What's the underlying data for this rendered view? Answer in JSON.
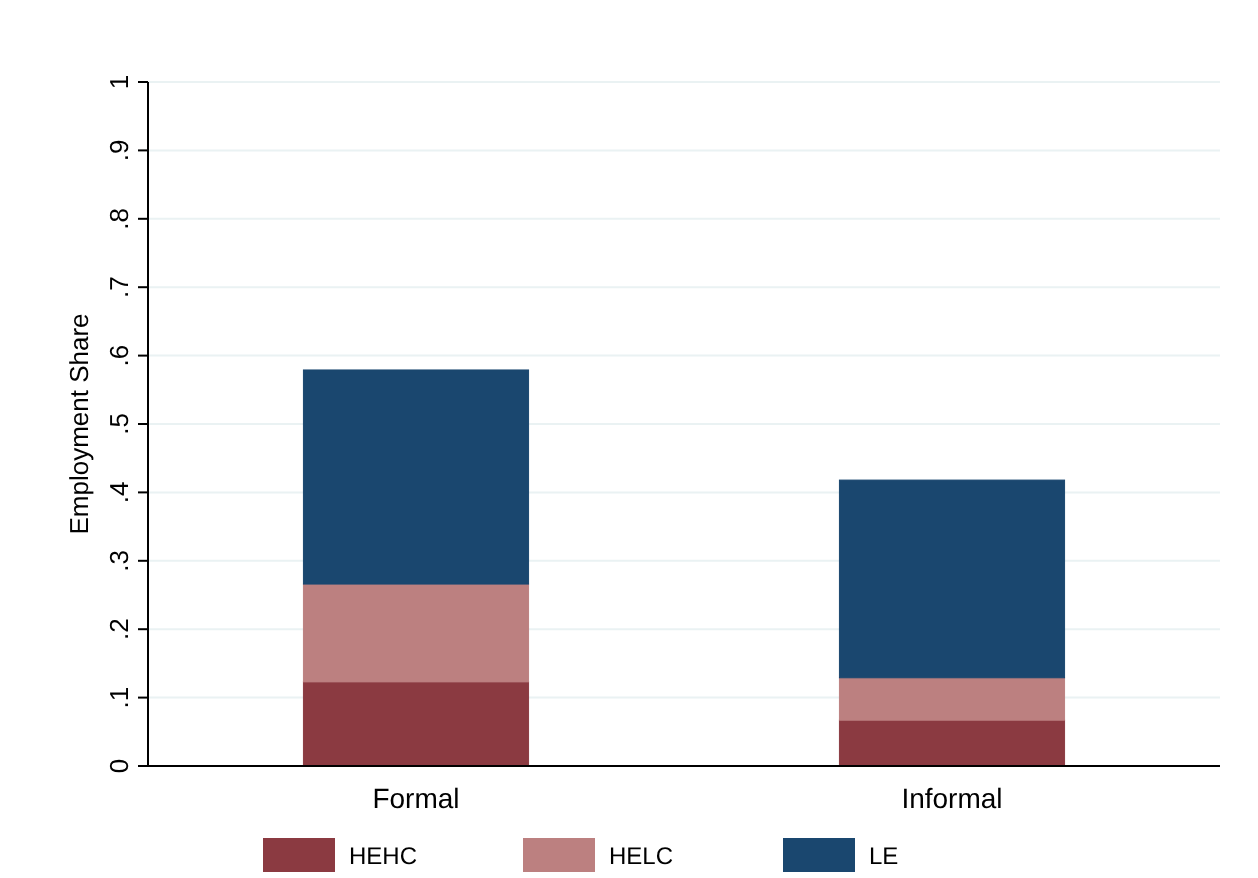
{
  "chart_data": {
    "type": "bar",
    "stacked": true,
    "ylabel": "Employment Share",
    "categories": [
      "Formal",
      "Informal"
    ],
    "series": [
      {
        "name": "HEHC",
        "color": "#8b3a41",
        "values": [
          0.123,
          0.067
        ]
      },
      {
        "name": "HELC",
        "color": "#bc8080",
        "values": [
          0.143,
          0.062
        ]
      },
      {
        "name": "LE",
        "color": "#1a476f",
        "values": [
          0.313,
          0.289
        ]
      }
    ],
    "ylim": [
      0,
      1
    ],
    "yticks": [
      0,
      {
        "value": 0.1,
        "label": ".1"
      },
      {
        "value": 0.2,
        "label": ".2"
      },
      {
        "value": 0.3,
        "label": ".3"
      },
      {
        "value": 0.4,
        "label": ".4"
      },
      {
        "value": 0.5,
        "label": ".5"
      },
      {
        "value": 0.6,
        "label": ".6"
      },
      {
        "value": 0.7,
        "label": ".7"
      },
      {
        "value": 0.8,
        "label": ".8"
      },
      {
        "value": 0.9,
        "label": ".9"
      },
      1
    ],
    "grid": "y",
    "legend": "bottom"
  }
}
